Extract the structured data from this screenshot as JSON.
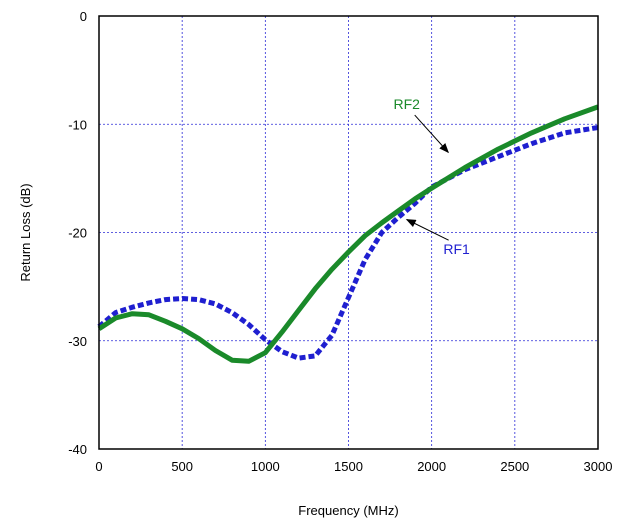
{
  "chart_data": {
    "type": "line",
    "title": "",
    "xlabel": "Frequency (MHz)",
    "ylabel": "Return Loss (dB)",
    "xlim": [
      0,
      3000
    ],
    "ylim": [
      -40,
      0
    ],
    "xticks": [
      0,
      500,
      1000,
      1500,
      2000,
      2500,
      3000
    ],
    "yticks": [
      0,
      -10,
      -20,
      -30,
      -40
    ],
    "grid": true,
    "legend": "annotations with arrows",
    "series": [
      {
        "name": "RF1",
        "color": "#1f1fd0",
        "style": "dashed",
        "x": [
          0,
          100,
          200,
          300,
          400,
          500,
          600,
          700,
          800,
          900,
          1000,
          1100,
          1200,
          1300,
          1400,
          1500,
          1600,
          1700,
          1800,
          1900,
          2000,
          2200,
          2400,
          2600,
          2800,
          3000
        ],
        "y": [
          -28.7,
          -27.4,
          -26.9,
          -26.5,
          -26.2,
          -26.1,
          -26.2,
          -26.6,
          -27.4,
          -28.5,
          -29.9,
          -31.0,
          -31.6,
          -31.4,
          -29.5,
          -26.0,
          -22.5,
          -20.0,
          -18.6,
          -17.3,
          -15.8,
          -14.2,
          -13.0,
          -11.8,
          -10.8,
          -10.3
        ]
      },
      {
        "name": "RF2",
        "color": "#1a8a2a",
        "style": "solid",
        "x": [
          0,
          100,
          200,
          300,
          400,
          500,
          600,
          700,
          800,
          900,
          1000,
          1100,
          1200,
          1300,
          1400,
          1500,
          1600,
          1700,
          1800,
          1900,
          2000,
          2200,
          2400,
          2600,
          2800,
          3000
        ],
        "y": [
          -28.9,
          -27.9,
          -27.5,
          -27.6,
          -28.2,
          -28.9,
          -29.8,
          -30.9,
          -31.8,
          -31.9,
          -31.1,
          -29.2,
          -27.2,
          -25.2,
          -23.4,
          -21.8,
          -20.3,
          -19.1,
          -18.0,
          -16.9,
          -15.9,
          -14.0,
          -12.3,
          -10.8,
          -9.5,
          -8.4
        ]
      }
    ],
    "annotations": [
      {
        "text": "RF2",
        "color": "#1a8a2a",
        "arrow_to": [
          2100,
          -12.6
        ],
        "text_at": [
          1850,
          -8.6
        ]
      },
      {
        "text": "RF1",
        "color": "#1f1fd0",
        "arrow_to": [
          1850,
          -18.8
        ],
        "text_at": [
          2150,
          -22.0
        ]
      }
    ]
  }
}
